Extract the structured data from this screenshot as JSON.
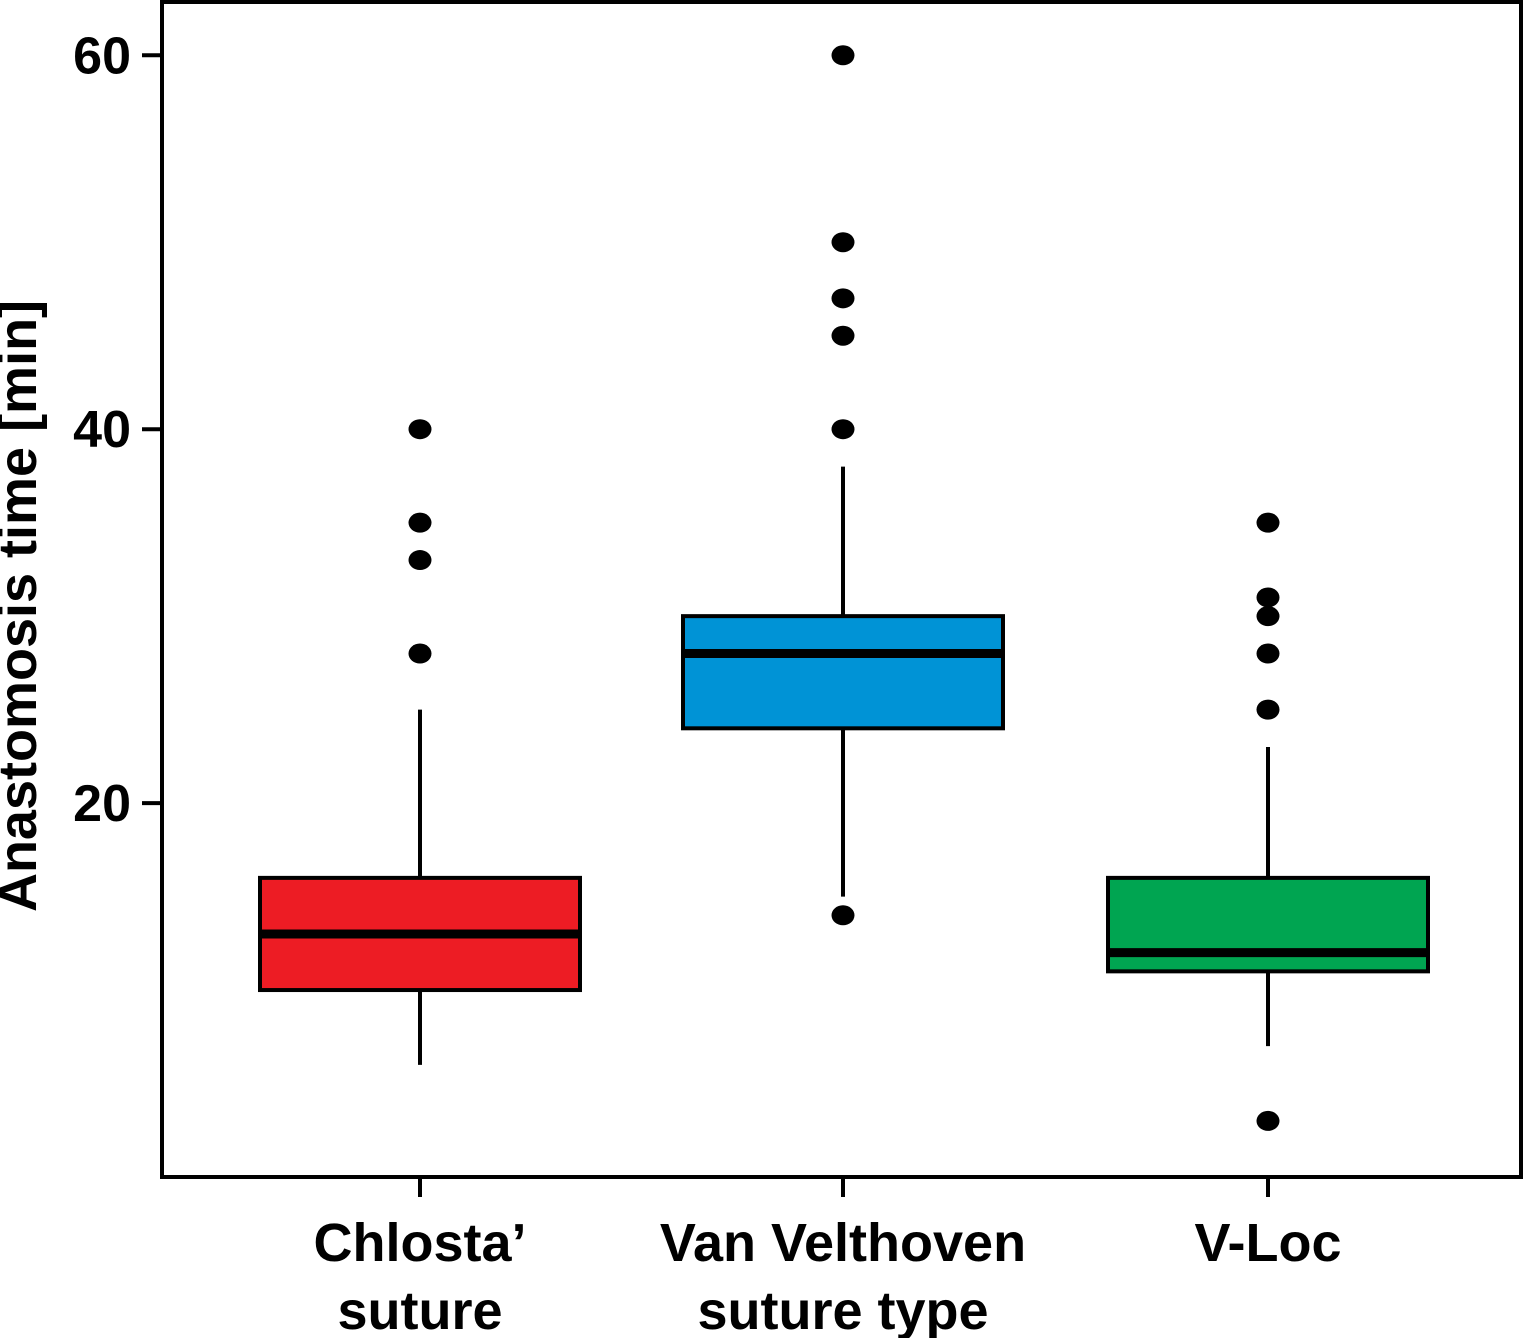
{
  "figure": {
    "background": "#ffffff",
    "frame_color": "#000000",
    "point_color": "#000000"
  },
  "chart_data": {
    "type": "boxplot",
    "title": "",
    "ylabel": "Anastomosis time [min]",
    "xlabel": "",
    "ylim": [
      0,
      62.85
    ],
    "yticks": [
      20,
      40,
      60
    ],
    "grid": false,
    "legend": false,
    "groups": [
      {
        "label": "Chlosta’ suture",
        "label_lines": [
          "Chlosta’",
          "suture"
        ],
        "color": "#ed1c24",
        "q1": 10,
        "median": 13,
        "q3": 16,
        "whisker_low": 6,
        "whisker_high": 25,
        "outliers": [
          28,
          33,
          35,
          40
        ]
      },
      {
        "label": "Van Velthoven suture type",
        "label_lines": [
          "Van Velthoven",
          "suture type"
        ],
        "color": "#0093d6",
        "q1": 24,
        "median": 28,
        "q3": 30,
        "whisker_low": 15,
        "whisker_high": 38,
        "outliers": [
          14,
          40,
          45,
          47,
          50,
          60
        ]
      },
      {
        "label": "V-Loc",
        "label_lines": [
          "V-Loc"
        ],
        "color": "#00a551",
        "q1": 11,
        "median": 12,
        "q3": 16,
        "whisker_low": 7,
        "whisker_high": 23,
        "outliers": [
          3,
          25,
          28,
          30,
          31,
          35
        ]
      }
    ]
  }
}
